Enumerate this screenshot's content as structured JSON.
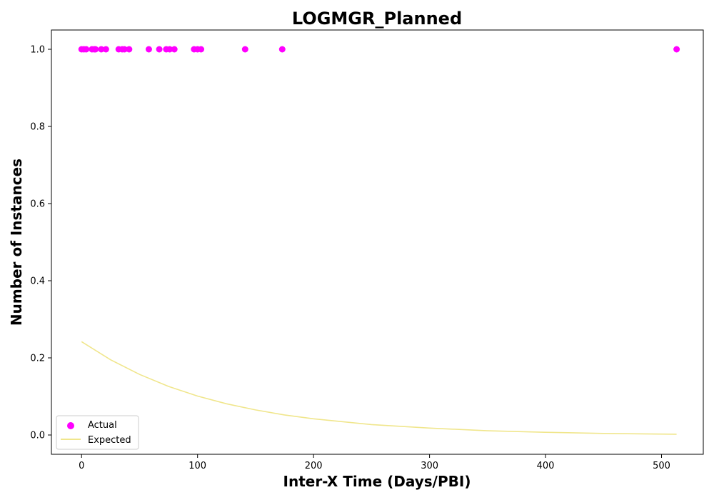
{
  "chart_data": {
    "type": "scatter",
    "title": "LOGMGR_Planned",
    "xlabel": "Inter-X Time (Days/PBI)",
    "ylabel": "Number of Instances",
    "xlim": [
      -26,
      536
    ],
    "ylim": [
      -0.05,
      1.05
    ],
    "xticks": [
      0,
      100,
      200,
      300,
      400,
      500
    ],
    "yticks": [
      0.0,
      0.2,
      0.4,
      0.6,
      0.8,
      1.0
    ],
    "xtick_labels": [
      "0",
      "100",
      "200",
      "300",
      "400",
      "500"
    ],
    "ytick_labels": [
      "0.0",
      "0.2",
      "0.4",
      "0.6",
      "0.8",
      "1.0"
    ],
    "grid": false,
    "legend_position": "lower-left",
    "series": [
      {
        "name": "Actual",
        "kind": "scatter",
        "color": "#ff00ff",
        "x": [
          0,
          2,
          4,
          9,
          11,
          12,
          17,
          21,
          32,
          35,
          37,
          41,
          58,
          67,
          73,
          76,
          80,
          97,
          100,
          103,
          141,
          173,
          513
        ],
        "y": [
          1,
          1,
          1,
          1,
          1,
          1,
          1,
          1,
          1,
          1,
          1,
          1,
          1,
          1,
          1,
          1,
          1,
          1,
          1,
          1,
          1,
          1,
          1
        ]
      },
      {
        "name": "Expected",
        "kind": "line",
        "color": "#f0e68c",
        "x": [
          0,
          25,
          50,
          75,
          100,
          125,
          150,
          175,
          200,
          250,
          300,
          350,
          400,
          450,
          513
        ],
        "y": [
          0.242,
          0.195,
          0.157,
          0.126,
          0.101,
          0.081,
          0.065,
          0.052,
          0.042,
          0.027,
          0.018,
          0.011,
          0.007,
          0.004,
          0.002
        ]
      }
    ]
  }
}
